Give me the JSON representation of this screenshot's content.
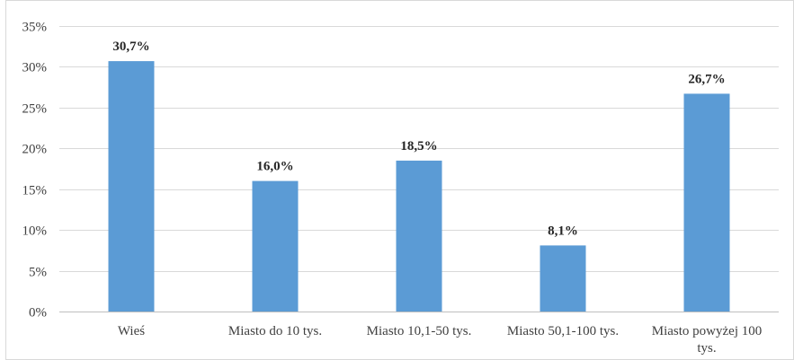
{
  "chart_data": {
    "type": "bar",
    "categories": [
      [
        "Wieś"
      ],
      [
        "Miasto do 10 tys."
      ],
      [
        "Miasto 10,1-50 tys."
      ],
      [
        "Miasto 50,1-100 tys."
      ],
      [
        "Miasto powyżej 100",
        "tys."
      ]
    ],
    "values": [
      30.7,
      16.0,
      18.5,
      8.1,
      26.7
    ],
    "data_labels": [
      "30,7%",
      "16,0%",
      "18,5%",
      "8,1%",
      "26,7%"
    ],
    "ylim": [
      0,
      35
    ],
    "yticks": [
      0,
      5,
      10,
      15,
      20,
      25,
      30,
      35
    ],
    "ytick_labels": [
      "0%",
      "5%",
      "10%",
      "15%",
      "20%",
      "25%",
      "30%",
      "35%"
    ],
    "title": "",
    "xlabel": "",
    "ylabel": "",
    "grid": true,
    "legend": "none",
    "colors": {
      "bar": "#5b9bd5",
      "grid": "#d9d9d9",
      "axis": "#bfbfbf",
      "border": "#d9d9d9"
    }
  }
}
